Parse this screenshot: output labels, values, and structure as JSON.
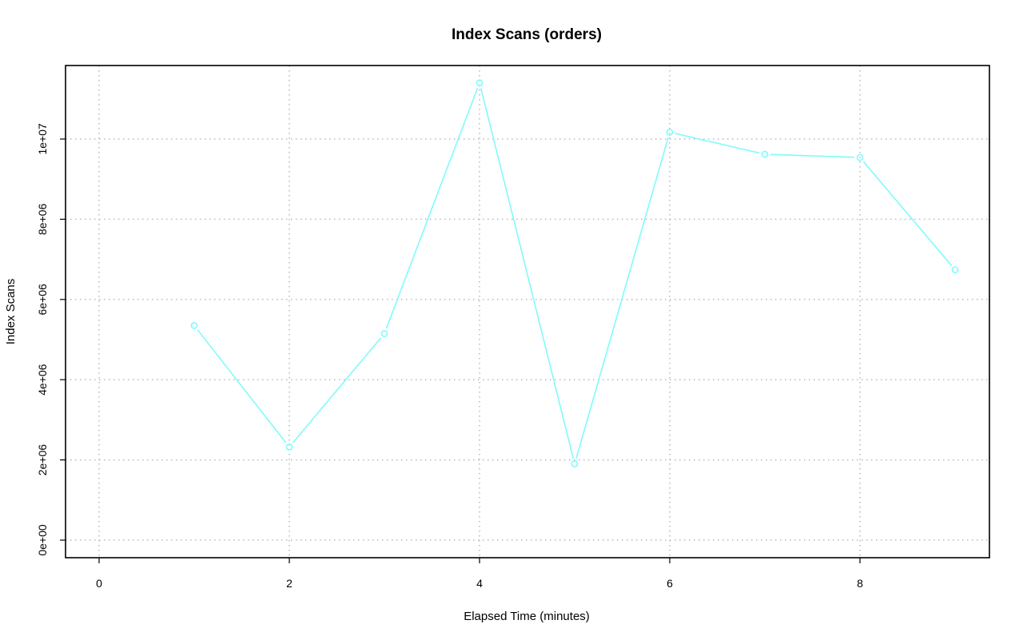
{
  "chart_data": {
    "type": "line",
    "title": "Index Scans (orders)",
    "xlabel": "Elapsed Time (minutes)",
    "ylabel": "Index Scans",
    "xlim": [
      0,
      9
    ],
    "ylim": [
      0,
      11400000
    ],
    "x_ticks": [
      0,
      2,
      4,
      6,
      8
    ],
    "x_tick_labels": [
      "0",
      "2",
      "4",
      "6",
      "8"
    ],
    "y_ticks": [
      0,
      2000000,
      4000000,
      6000000,
      8000000,
      10000000
    ],
    "y_tick_labels": [
      "0e+00",
      "2e+06",
      "4e+06",
      "6e+06",
      "8e+06",
      "1e+07"
    ],
    "grid": true,
    "series": [
      {
        "color": "#7ffbfb",
        "marker": "open-circle",
        "x": [
          1,
          2,
          3,
          4,
          5,
          6,
          7,
          8,
          9
        ],
        "y": [
          5350000,
          2320000,
          5150000,
          11400000,
          1900000,
          10170000,
          9620000,
          9540000,
          6740000
        ]
      }
    ]
  }
}
